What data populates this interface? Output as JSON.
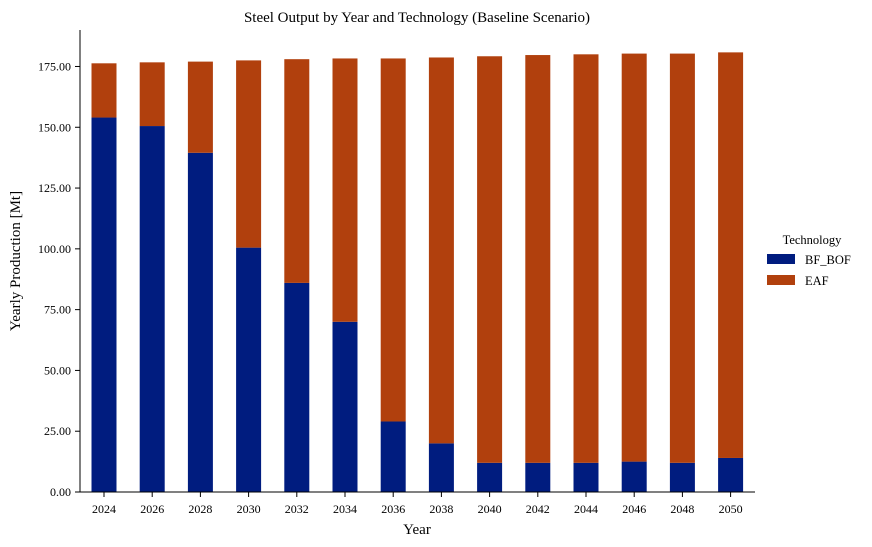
{
  "chart_data": {
    "type": "bar",
    "stacked": true,
    "title": "Steel Output by Year and Technology (Baseline Scenario)",
    "xlabel": "Year",
    "ylabel": "Yearly Production [Mt]",
    "ylim": [
      0,
      190
    ],
    "yticks": [
      "0.00",
      "25.00",
      "50.00",
      "75.00",
      "100.00",
      "125.00",
      "150.00",
      "175.00"
    ],
    "categories": [
      "2024",
      "2026",
      "2028",
      "2030",
      "2032",
      "2034",
      "2036",
      "2038",
      "2040",
      "2042",
      "2044",
      "2046",
      "2048",
      "2050"
    ],
    "series": [
      {
        "name": "BF_BOF",
        "color": "#001c7f",
        "values": [
          154.0,
          150.5,
          139.5,
          100.5,
          86.0,
          70.0,
          29.0,
          20.0,
          12.0,
          12.0,
          12.0,
          12.5,
          12.0,
          14.0
        ]
      },
      {
        "name": "EAF",
        "color": "#b1400d",
        "values": [
          22.3,
          26.2,
          37.5,
          77.0,
          92.0,
          108.3,
          149.3,
          158.7,
          167.2,
          167.7,
          168.0,
          167.8,
          168.3,
          166.8
        ]
      }
    ],
    "legend": {
      "title": "Technology",
      "position": "right"
    },
    "grid": false
  }
}
